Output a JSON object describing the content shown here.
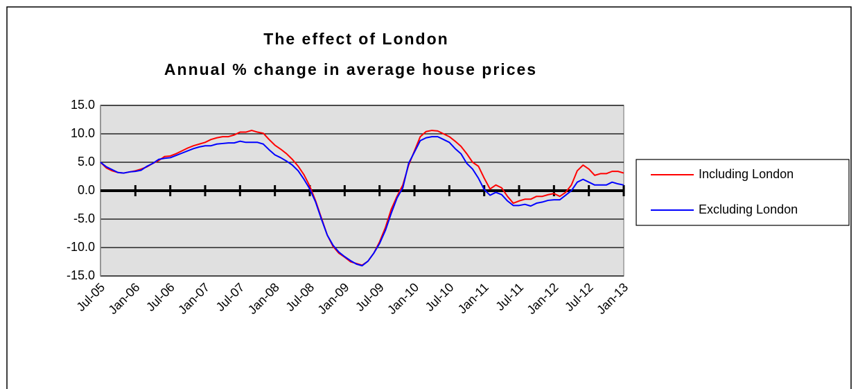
{
  "chart_data": {
    "type": "line",
    "title": "The effect of London",
    "subtitle": "Annual % change in average house prices",
    "categories": [
      "Jul-05",
      null,
      null,
      null,
      null,
      null,
      "Jan-06",
      null,
      null,
      null,
      null,
      null,
      "Jul-06",
      null,
      null,
      null,
      null,
      null,
      "Jan-07",
      null,
      null,
      null,
      null,
      null,
      "Jul-07",
      null,
      null,
      null,
      null,
      null,
      "Jan-08",
      null,
      null,
      null,
      null,
      null,
      "Jul-08",
      null,
      null,
      null,
      null,
      null,
      "Jan-09",
      null,
      null,
      null,
      null,
      null,
      "Jul-09",
      null,
      null,
      null,
      null,
      null,
      "Jan-10",
      null,
      null,
      null,
      null,
      null,
      "Jul-10",
      null,
      null,
      null,
      null,
      null,
      "Jan-11",
      null,
      null,
      null,
      null,
      null,
      "Jul-11",
      null,
      null,
      null,
      null,
      null,
      "Jan-12",
      null,
      null,
      null,
      null,
      null,
      "Jul-12",
      null,
      null,
      null,
      null,
      null,
      "Jan-13"
    ],
    "series": [
      {
        "name": "Including London",
        "color": "#ff0000",
        "values": [
          5.0,
          4.0,
          3.5,
          3.2,
          3.1,
          3.3,
          3.5,
          3.8,
          4.2,
          4.8,
          5.3,
          6.0,
          6.1,
          6.5,
          7.0,
          7.5,
          7.9,
          8.2,
          8.5,
          9.0,
          9.3,
          9.5,
          9.5,
          9.8,
          10.3,
          10.3,
          10.6,
          10.3,
          10.1,
          9.0,
          8.0,
          7.3,
          6.5,
          5.5,
          4.3,
          2.8,
          0.8,
          -1.8,
          -4.8,
          -7.8,
          -9.8,
          -11.0,
          -11.7,
          -12.5,
          -12.8,
          -13.1,
          -12.4,
          -11.0,
          -9.0,
          -6.5,
          -3.3,
          -1.0,
          1.0,
          4.5,
          7.0,
          9.5,
          10.4,
          10.6,
          10.5,
          10.0,
          9.5,
          8.7,
          7.8,
          6.5,
          5.0,
          4.3,
          2.2,
          0.3,
          1.0,
          0.5,
          -1.0,
          -2.2,
          -1.8,
          -1.5,
          -1.5,
          -1.0,
          -1.0,
          -0.7,
          -0.5,
          -1.0,
          -0.3,
          1.0,
          3.5,
          4.5,
          3.8,
          2.7,
          3.0,
          3.0,
          3.4,
          3.4,
          3.1
        ]
      },
      {
        "name": "Excluding London",
        "color": "#0000ff",
        "values": [
          5.0,
          4.2,
          3.7,
          3.2,
          3.1,
          3.3,
          3.4,
          3.6,
          4.3,
          4.8,
          5.5,
          5.7,
          5.8,
          6.2,
          6.6,
          7.0,
          7.4,
          7.7,
          7.9,
          7.9,
          8.2,
          8.3,
          8.4,
          8.4,
          8.7,
          8.5,
          8.5,
          8.5,
          8.2,
          7.2,
          6.3,
          5.8,
          5.2,
          4.5,
          3.5,
          2.0,
          0.3,
          -2.0,
          -5.0,
          -7.8,
          -9.6,
          -10.8,
          -11.6,
          -12.3,
          -12.9,
          -13.2,
          -12.4,
          -11.0,
          -9.3,
          -7.0,
          -4.0,
          -1.3,
          0.5,
          4.8,
          6.8,
          8.8,
          9.3,
          9.5,
          9.5,
          9.0,
          8.5,
          7.4,
          6.5,
          4.8,
          3.8,
          2.2,
          0.2,
          -0.8,
          -0.3,
          -0.7,
          -1.8,
          -2.6,
          -2.6,
          -2.4,
          -2.7,
          -2.2,
          -2.0,
          -1.7,
          -1.6,
          -1.6,
          -0.8,
          0.0,
          1.5,
          2.0,
          1.5,
          1.0,
          1.0,
          1.0,
          1.5,
          1.2,
          1.0
        ]
      }
    ],
    "ylim": [
      -15,
      15
    ],
    "yticks": [
      {
        "value": 15,
        "label": "15.0"
      },
      {
        "value": 10,
        "label": "10.0"
      },
      {
        "value": 5,
        "label": "5.0"
      },
      {
        "value": 0,
        "label": "0.0"
      },
      {
        "value": -5,
        "label": "-5.0"
      },
      {
        "value": -10,
        "label": "-10.0"
      },
      {
        "value": -15,
        "label": "-15.0"
      }
    ],
    "grid": true,
    "legend": "right"
  }
}
